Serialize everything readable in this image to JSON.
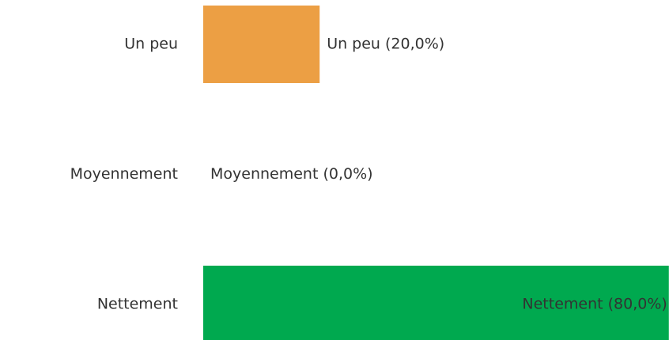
{
  "chart_data": {
    "type": "hbar",
    "categories": [
      "Un peu",
      "Moyennement",
      "Nettement"
    ],
    "values": [
      20,
      0,
      80
    ],
    "value_labels": [
      "Un peu (20,0%)",
      "Moyennement (0,0%)",
      "Nettement (80,0%)"
    ],
    "colors": [
      "#ec9f44",
      null,
      "#00a94f"
    ],
    "xlim": [
      0,
      100
    ]
  }
}
